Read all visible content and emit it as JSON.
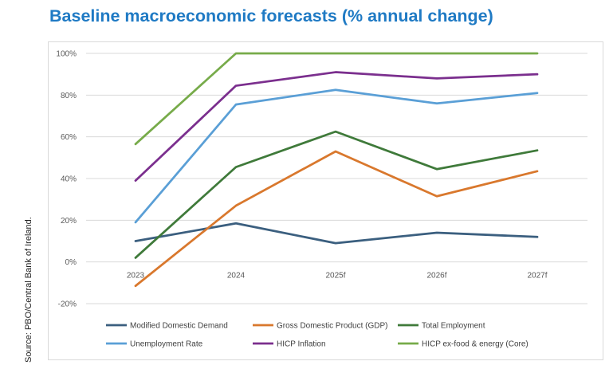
{
  "source_note": "Source: PBO/Central Bank of Ireland.",
  "chart_data": {
    "type": "line",
    "title": "Baseline macroeconomic forecasts (% annual change)",
    "xlabel": "",
    "ylabel": "",
    "categories": [
      "2023",
      "2024",
      "2025f",
      "2026f",
      "2027f"
    ],
    "ylim": [
      -20,
      100
    ],
    "yticks": [
      -20,
      0,
      20,
      40,
      60,
      80,
      100
    ],
    "ytick_suffix": "%",
    "grid": true,
    "legend_position": "bottom",
    "series": [
      {
        "name": "Modified Domestic Demand",
        "color": "#3b5f7f",
        "values": [
          10,
          18.5,
          9,
          14,
          12
        ]
      },
      {
        "name": "Gross Domestic Product (GDP)",
        "color": "#d9782d",
        "values": [
          -11.5,
          27,
          53,
          31.5,
          43.5
        ]
      },
      {
        "name": "Total Employment",
        "color": "#3f7a3a",
        "values": [
          2,
          45.5,
          62.5,
          44.5,
          53.5
        ]
      },
      {
        "name": "Unemployment Rate",
        "color": "#5a9fd6",
        "values": [
          19,
          75.5,
          82.5,
          76,
          81
        ]
      },
      {
        "name": "HICP Inflation",
        "color": "#7b2f8e",
        "values": [
          39,
          84.5,
          91,
          88,
          90
        ]
      },
      {
        "name": "HICP ex-food & energy (Core)",
        "color": "#77ab4a",
        "values": [
          56.5,
          100,
          100,
          100,
          100
        ]
      }
    ]
  }
}
